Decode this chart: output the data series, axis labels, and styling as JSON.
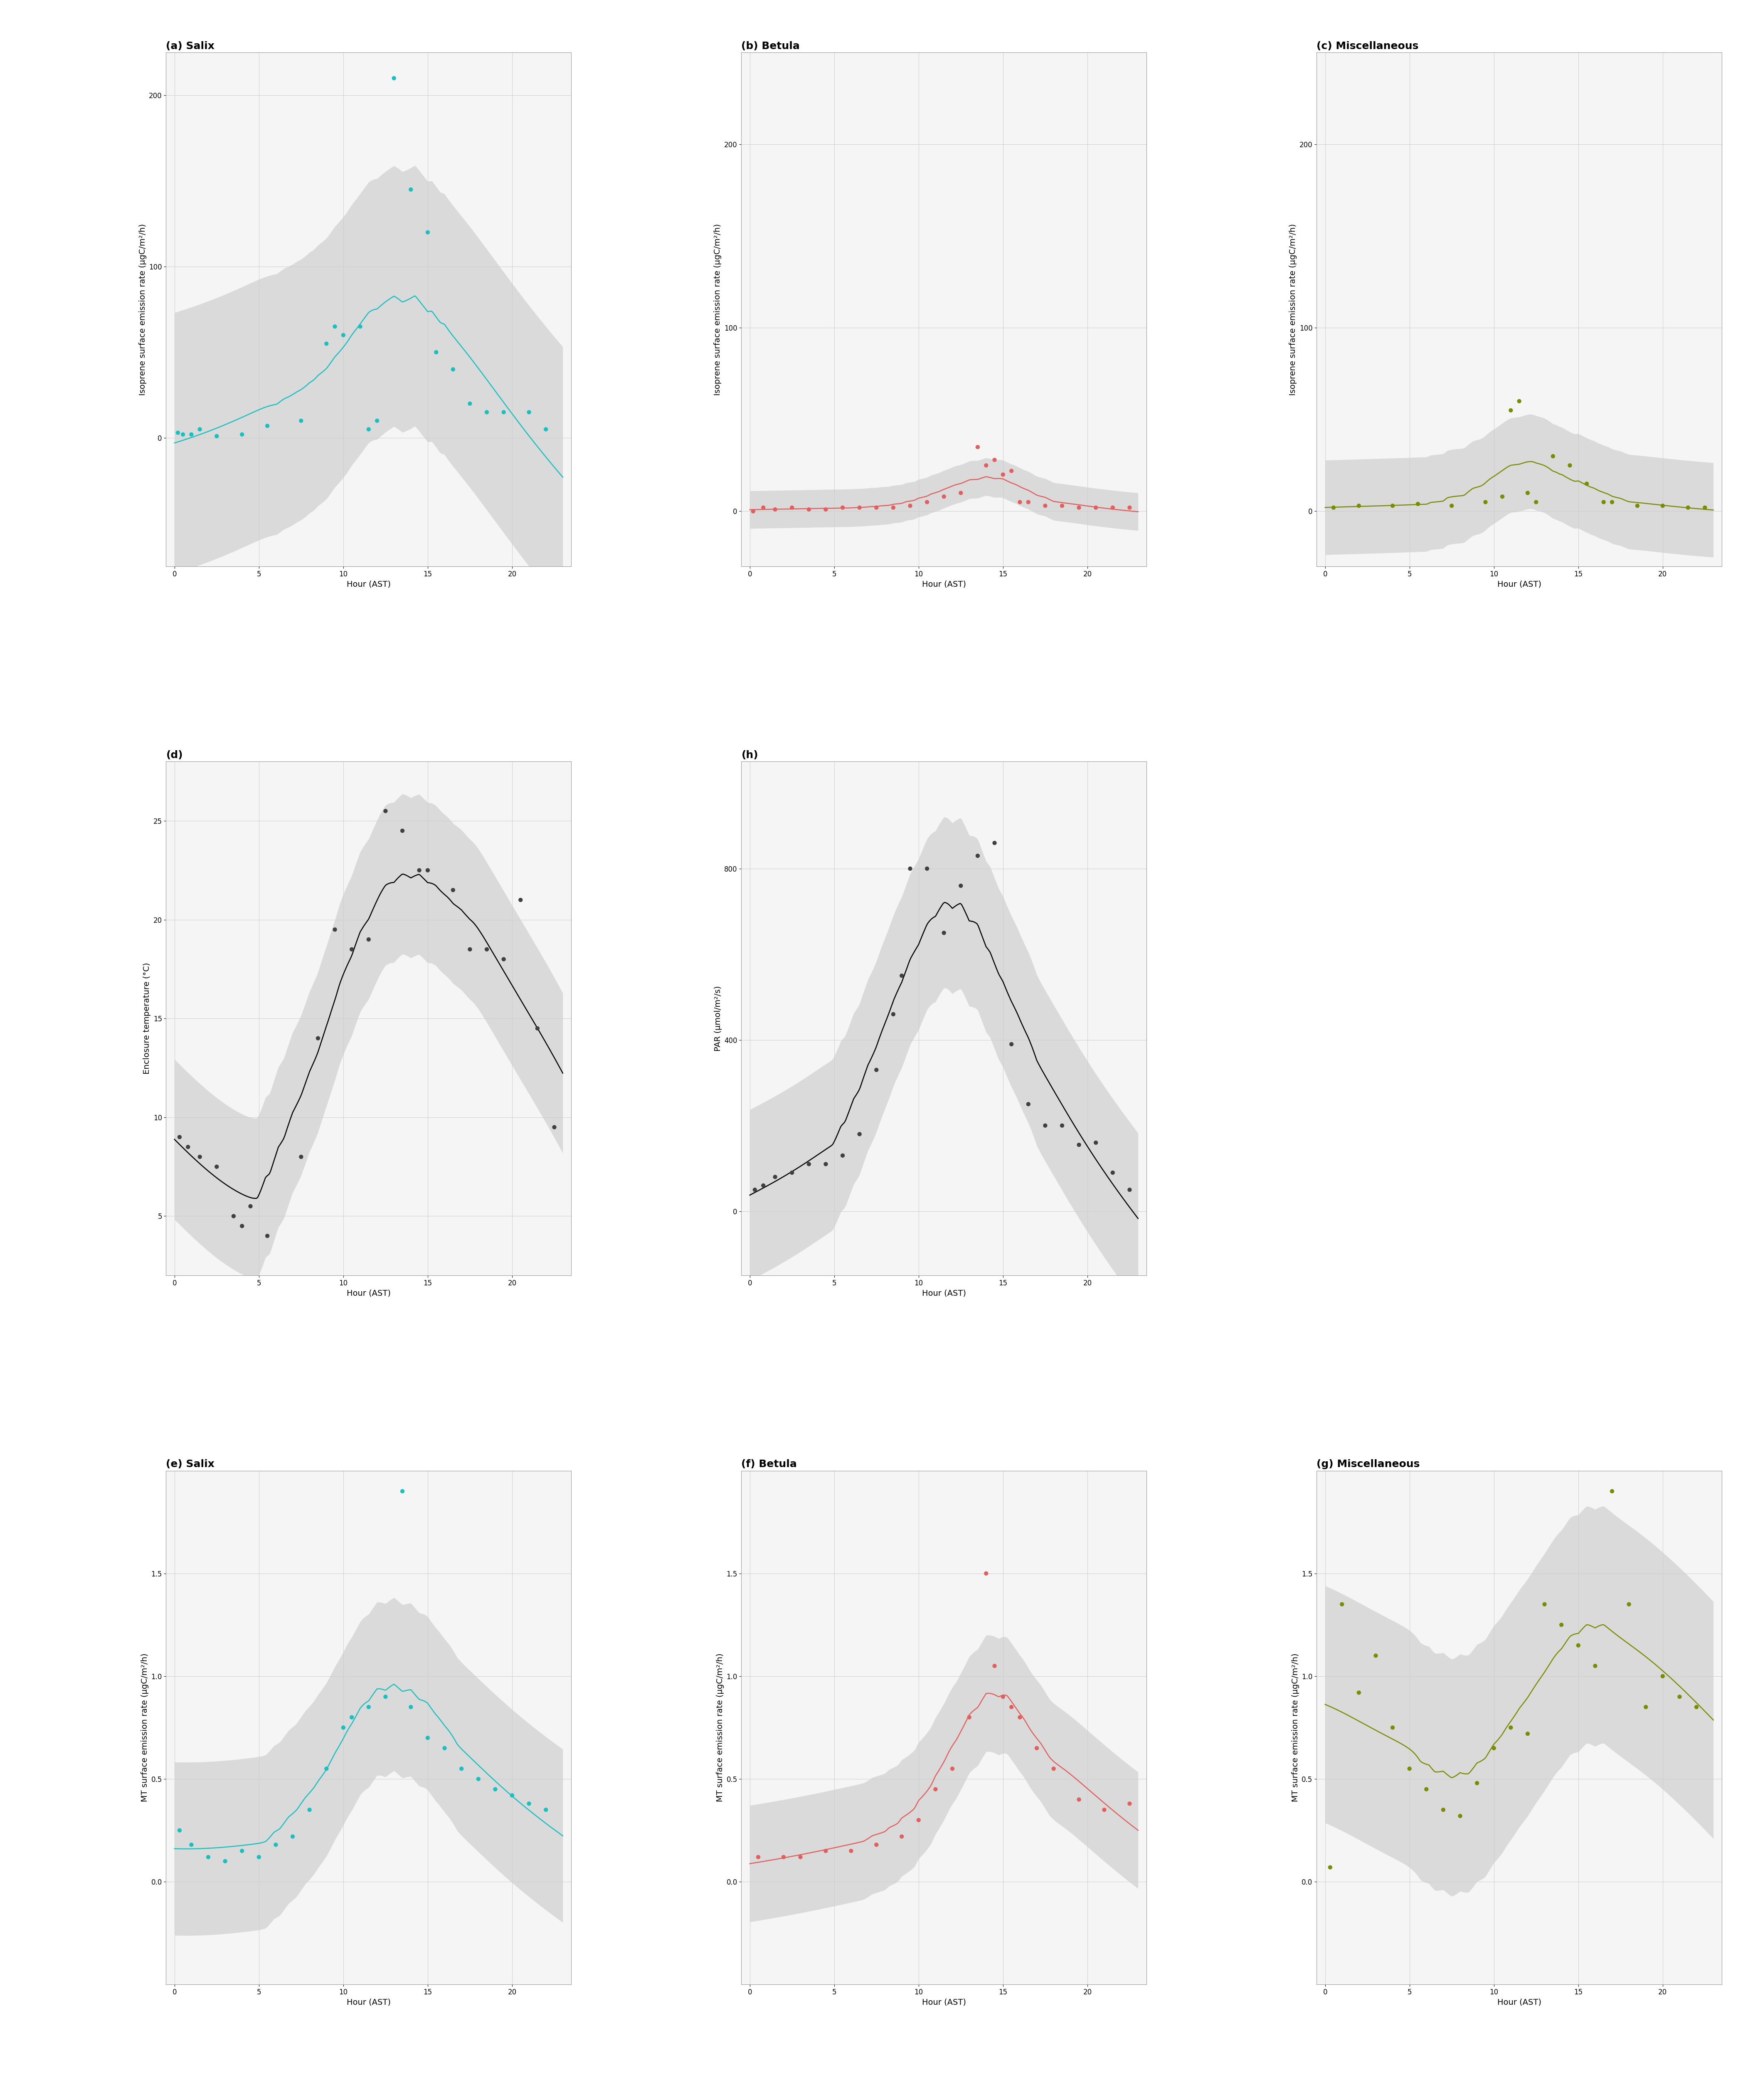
{
  "panels": {
    "a_salix_isoprene": {
      "title": "(a) Salix",
      "ylabel": "Isoprene surface emission rate (μgC/m²/h)",
      "xlabel": "Hour (AST)",
      "color": "#1ABFBF",
      "line_color": "#1ABFBF",
      "scatter_x": [
        0.2,
        0.5,
        1.0,
        1.5,
        2.5,
        4.0,
        5.5,
        7.5,
        9.0,
        9.5,
        10.0,
        11.0,
        11.5,
        12.0,
        13.0,
        14.0,
        15.0,
        15.5,
        16.5,
        17.5,
        18.5,
        19.5,
        21.0,
        22.0
      ],
      "scatter_y": [
        3,
        2,
        2,
        5,
        1,
        2,
        7,
        10,
        55,
        65,
        60,
        65,
        5,
        10,
        210,
        145,
        120,
        50,
        40,
        20,
        15,
        15,
        15,
        5
      ],
      "ylim": [
        -75,
        225
      ],
      "yticks": [
        0,
        100,
        200
      ],
      "xlim": [
        -0.5,
        23.5
      ],
      "xticks": [
        0,
        5,
        10,
        15,
        20
      ]
    },
    "b_betula_isoprene": {
      "title": "(b) Betula",
      "ylabel": "Isoprene surface emission rate (μgC/m²/h)",
      "xlabel": "Hour (AST)",
      "color": "#E06060",
      "line_color": "#E06060",
      "scatter_x": [
        0.2,
        0.8,
        1.5,
        2.5,
        3.5,
        4.5,
        5.5,
        6.5,
        7.5,
        8.5,
        9.5,
        10.5,
        11.5,
        12.5,
        13.5,
        14.0,
        14.5,
        15.0,
        15.5,
        16.0,
        16.5,
        17.5,
        18.5,
        19.5,
        20.5,
        21.5,
        22.5
      ],
      "scatter_y": [
        0,
        2,
        1,
        2,
        1,
        1,
        2,
        2,
        2,
        2,
        3,
        5,
        8,
        10,
        35,
        25,
        28,
        20,
        22,
        5,
        5,
        3,
        3,
        2,
        2,
        2,
        2
      ],
      "ylim": [
        -30,
        250
      ],
      "yticks": [
        0,
        100,
        200
      ],
      "xlim": [
        -0.5,
        23.5
      ],
      "xticks": [
        0,
        5,
        10,
        15,
        20
      ]
    },
    "c_misc_isoprene": {
      "title": "(c) Miscellaneous",
      "ylabel": "Isoprene surface emission rate (μgC/m²/h)",
      "xlabel": "Hour (AST)",
      "color": "#7A8C00",
      "line_color": "#7A8C00",
      "scatter_x": [
        0.5,
        2.0,
        4.0,
        5.5,
        7.5,
        9.5,
        10.5,
        11.0,
        11.5,
        12.0,
        12.5,
        13.5,
        14.5,
        15.5,
        16.5,
        17.0,
        18.5,
        20.0,
        21.5,
        22.5
      ],
      "scatter_y": [
        2,
        3,
        3,
        4,
        3,
        5,
        8,
        55,
        60,
        10,
        5,
        30,
        25,
        15,
        5,
        5,
        3,
        3,
        2,
        2
      ],
      "ylim": [
        -30,
        250
      ],
      "yticks": [
        0,
        100,
        200
      ],
      "xlim": [
        -0.5,
        23.5
      ],
      "xticks": [
        0,
        5,
        10,
        15,
        20
      ]
    },
    "d_temperature": {
      "title": "(d)",
      "ylabel": "Enclosure temperature (°C)",
      "xlabel": "Hour (AST)",
      "color": "#404040",
      "line_color": "#000000",
      "scatter_x": [
        0.3,
        0.8,
        1.5,
        2.5,
        3.5,
        4.0,
        4.5,
        5.5,
        7.5,
        8.5,
        9.5,
        10.5,
        11.5,
        12.5,
        13.5,
        14.5,
        15.0,
        16.5,
        17.5,
        18.5,
        19.5,
        20.5,
        21.5,
        22.5
      ],
      "scatter_y": [
        9,
        8.5,
        8,
        7.5,
        5,
        4.5,
        5.5,
        4,
        8,
        14,
        19.5,
        18.5,
        19,
        25.5,
        24.5,
        22.5,
        22.5,
        21.5,
        18.5,
        18.5,
        18,
        21,
        14.5,
        9.5
      ],
      "ylim": [
        2,
        28
      ],
      "yticks": [
        5,
        10,
        15,
        20,
        25
      ],
      "xlim": [
        -0.5,
        23.5
      ],
      "xticks": [
        0,
        5,
        10,
        15,
        20
      ]
    },
    "h_par": {
      "title": "(h)",
      "ylabel": "PAR (μmol/m²/s)",
      "xlabel": "Hour (AST)",
      "color": "#404040",
      "line_color": "#000000",
      "scatter_x": [
        0.3,
        0.8,
        1.5,
        2.5,
        3.5,
        4.5,
        5.5,
        6.5,
        7.5,
        8.5,
        9.0,
        9.5,
        10.5,
        11.5,
        12.5,
        13.5,
        14.5,
        15.5,
        16.5,
        17.5,
        18.5,
        19.5,
        20.5,
        21.5,
        22.5
      ],
      "scatter_y": [
        50,
        60,
        80,
        90,
        110,
        110,
        130,
        180,
        330,
        460,
        550,
        800,
        800,
        650,
        760,
        830,
        860,
        390,
        250,
        200,
        200,
        155,
        160,
        90,
        50
      ],
      "ylim": [
        -150,
        1050
      ],
      "yticks": [
        0,
        400,
        800
      ],
      "xlim": [
        -0.5,
        23.5
      ],
      "xticks": [
        0,
        5,
        10,
        15,
        20
      ]
    },
    "e_salix_mt": {
      "title": "(e) Salix",
      "ylabel": "MT surface emission rate (μgC/m²/h)",
      "xlabel": "Hour (AST)",
      "color": "#1ABFBF",
      "line_color": "#1ABFBF",
      "scatter_x": [
        0.3,
        1.0,
        2.0,
        3.0,
        4.0,
        5.0,
        6.0,
        7.0,
        8.0,
        9.0,
        10.0,
        10.5,
        11.5,
        12.5,
        13.5,
        14.0,
        15.0,
        16.0,
        17.0,
        18.0,
        19.0,
        20.0,
        21.0,
        22.0
      ],
      "scatter_y": [
        0.25,
        0.18,
        0.12,
        0.1,
        0.15,
        0.12,
        0.18,
        0.22,
        0.35,
        0.55,
        0.75,
        0.8,
        0.85,
        0.9,
        1.9,
        0.85,
        0.7,
        0.65,
        0.55,
        0.5,
        0.45,
        0.42,
        0.38,
        0.35
      ],
      "ylim": [
        -0.5,
        2.0
      ],
      "yticks": [
        0.0,
        0.5,
        1.0,
        1.5
      ],
      "xlim": [
        -0.5,
        23.5
      ],
      "xticks": [
        0,
        5,
        10,
        15,
        20
      ]
    },
    "f_betula_mt": {
      "title": "(f) Betula",
      "ylabel": "MT surface emission rate (μgC/m²/h)",
      "xlabel": "Hour (AST)",
      "color": "#E06060",
      "line_color": "#E06060",
      "scatter_x": [
        0.5,
        2.0,
        3.0,
        4.5,
        6.0,
        7.5,
        9.0,
        10.0,
        11.0,
        12.0,
        13.0,
        14.0,
        14.5,
        15.0,
        15.5,
        16.0,
        17.0,
        18.0,
        19.5,
        21.0,
        22.5
      ],
      "scatter_y": [
        0.12,
        0.12,
        0.12,
        0.15,
        0.15,
        0.18,
        0.22,
        0.3,
        0.45,
        0.55,
        0.8,
        1.5,
        1.05,
        0.9,
        0.85,
        0.8,
        0.65,
        0.55,
        0.4,
        0.35,
        0.38
      ],
      "ylim": [
        -0.5,
        2.0
      ],
      "yticks": [
        0.0,
        0.5,
        1.0,
        1.5
      ],
      "xlim": [
        -0.5,
        23.5
      ],
      "xticks": [
        0,
        5,
        10,
        15,
        20
      ]
    },
    "g_misc_mt": {
      "title": "(g) Miscellaneous",
      "ylabel": "MT surface emission rate (μgC/m²/h)",
      "xlabel": "Hour (AST)",
      "color": "#7A8C00",
      "line_color": "#7A8C00",
      "scatter_x": [
        0.3,
        1.0,
        2.0,
        3.0,
        4.0,
        5.0,
        6.0,
        7.0,
        8.0,
        9.0,
        10.0,
        11.0,
        12.0,
        13.0,
        14.0,
        15.0,
        16.0,
        17.0,
        18.0,
        19.0,
        20.0,
        21.0,
        22.0
      ],
      "scatter_y": [
        0.07,
        1.35,
        0.92,
        1.1,
        0.75,
        0.55,
        0.45,
        0.35,
        0.32,
        0.48,
        0.65,
        0.75,
        0.72,
        1.35,
        1.25,
        1.15,
        1.05,
        1.9,
        1.35,
        0.85,
        1.0,
        0.9,
        0.85
      ],
      "ylim": [
        -0.5,
        2.0
      ],
      "yticks": [
        0.0,
        0.5,
        1.0,
        1.5
      ],
      "xlim": [
        -0.5,
        23.5
      ],
      "xticks": [
        0,
        5,
        10,
        15,
        20
      ]
    }
  },
  "bg_color": "#ffffff",
  "panel_bg": "#f5f5f5",
  "grid_color": "#cccccc",
  "shade_color": "#aaaaaa",
  "shade_alpha": 0.35,
  "scatter_size": 55,
  "line_width": 1.8,
  "font_size_title": 18,
  "font_size_label": 14,
  "font_size_tick": 12
}
